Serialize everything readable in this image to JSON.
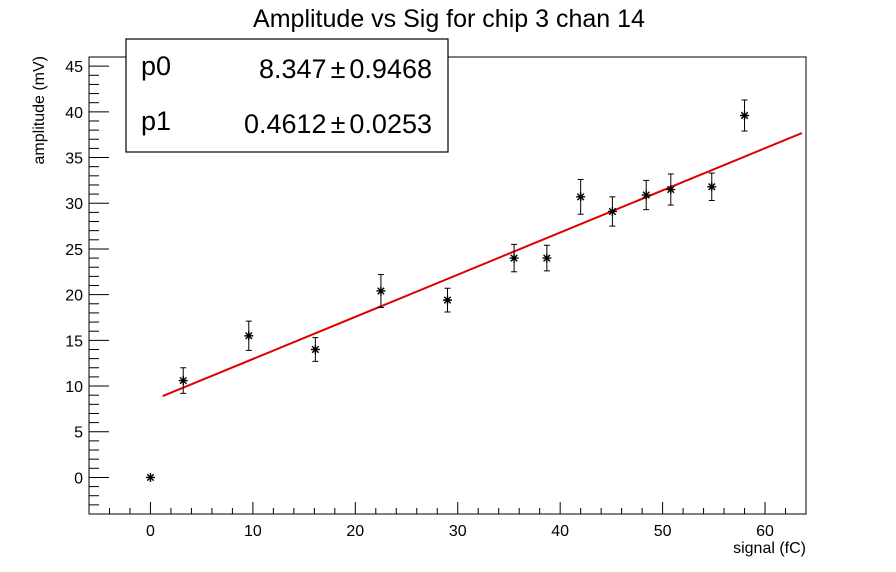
{
  "chart_data": {
    "type": "scatter",
    "title": "Amplitude vs Sig for chip 3 chan 14",
    "xlabel": "signal (fC)",
    "ylabel": "amplitude (mV)",
    "xlim": [
      -6,
      64
    ],
    "ylim": [
      -4,
      46
    ],
    "x_ticks": [
      0,
      10,
      20,
      30,
      40,
      50,
      60
    ],
    "y_ticks": [
      0,
      5,
      10,
      15,
      20,
      25,
      30,
      35,
      40,
      45
    ],
    "grid": false,
    "marker_color": "#000000",
    "fit_color": "#e00000",
    "series": [
      {
        "points": [
          {
            "x": 0,
            "y": 0,
            "err": 0
          },
          {
            "x": 3.2,
            "y": 10.6,
            "err": 1.4
          },
          {
            "x": 9.6,
            "y": 15.5,
            "err": 1.6
          },
          {
            "x": 16.1,
            "y": 14.0,
            "err": 1.3
          },
          {
            "x": 22.5,
            "y": 20.4,
            "err": 1.8
          },
          {
            "x": 29.0,
            "y": 19.4,
            "err": 1.3
          },
          {
            "x": 35.5,
            "y": 24.0,
            "err": 1.5
          },
          {
            "x": 38.7,
            "y": 24.0,
            "err": 1.4
          },
          {
            "x": 42.0,
            "y": 30.7,
            "err": 1.9
          },
          {
            "x": 45.1,
            "y": 29.1,
            "err": 1.6
          },
          {
            "x": 48.4,
            "y": 30.9,
            "err": 1.6
          },
          {
            "x": 50.8,
            "y": 31.5,
            "err": 1.7
          },
          {
            "x": 54.8,
            "y": 31.8,
            "err": 1.5
          },
          {
            "x": 58.0,
            "y": 39.6,
            "err": 1.7
          }
        ]
      }
    ],
    "fit": {
      "type": "linear",
      "x_range": [
        1.2,
        63.6
      ],
      "p0": 8.347,
      "p1": 0.4612
    },
    "stats_box": {
      "placement": "top-left",
      "rows": [
        {
          "name": "p0",
          "value": "8.347",
          "error": "0.9468"
        },
        {
          "name": "p1",
          "value": "0.4612",
          "error": "0.0253"
        }
      ],
      "pm": "±"
    }
  }
}
